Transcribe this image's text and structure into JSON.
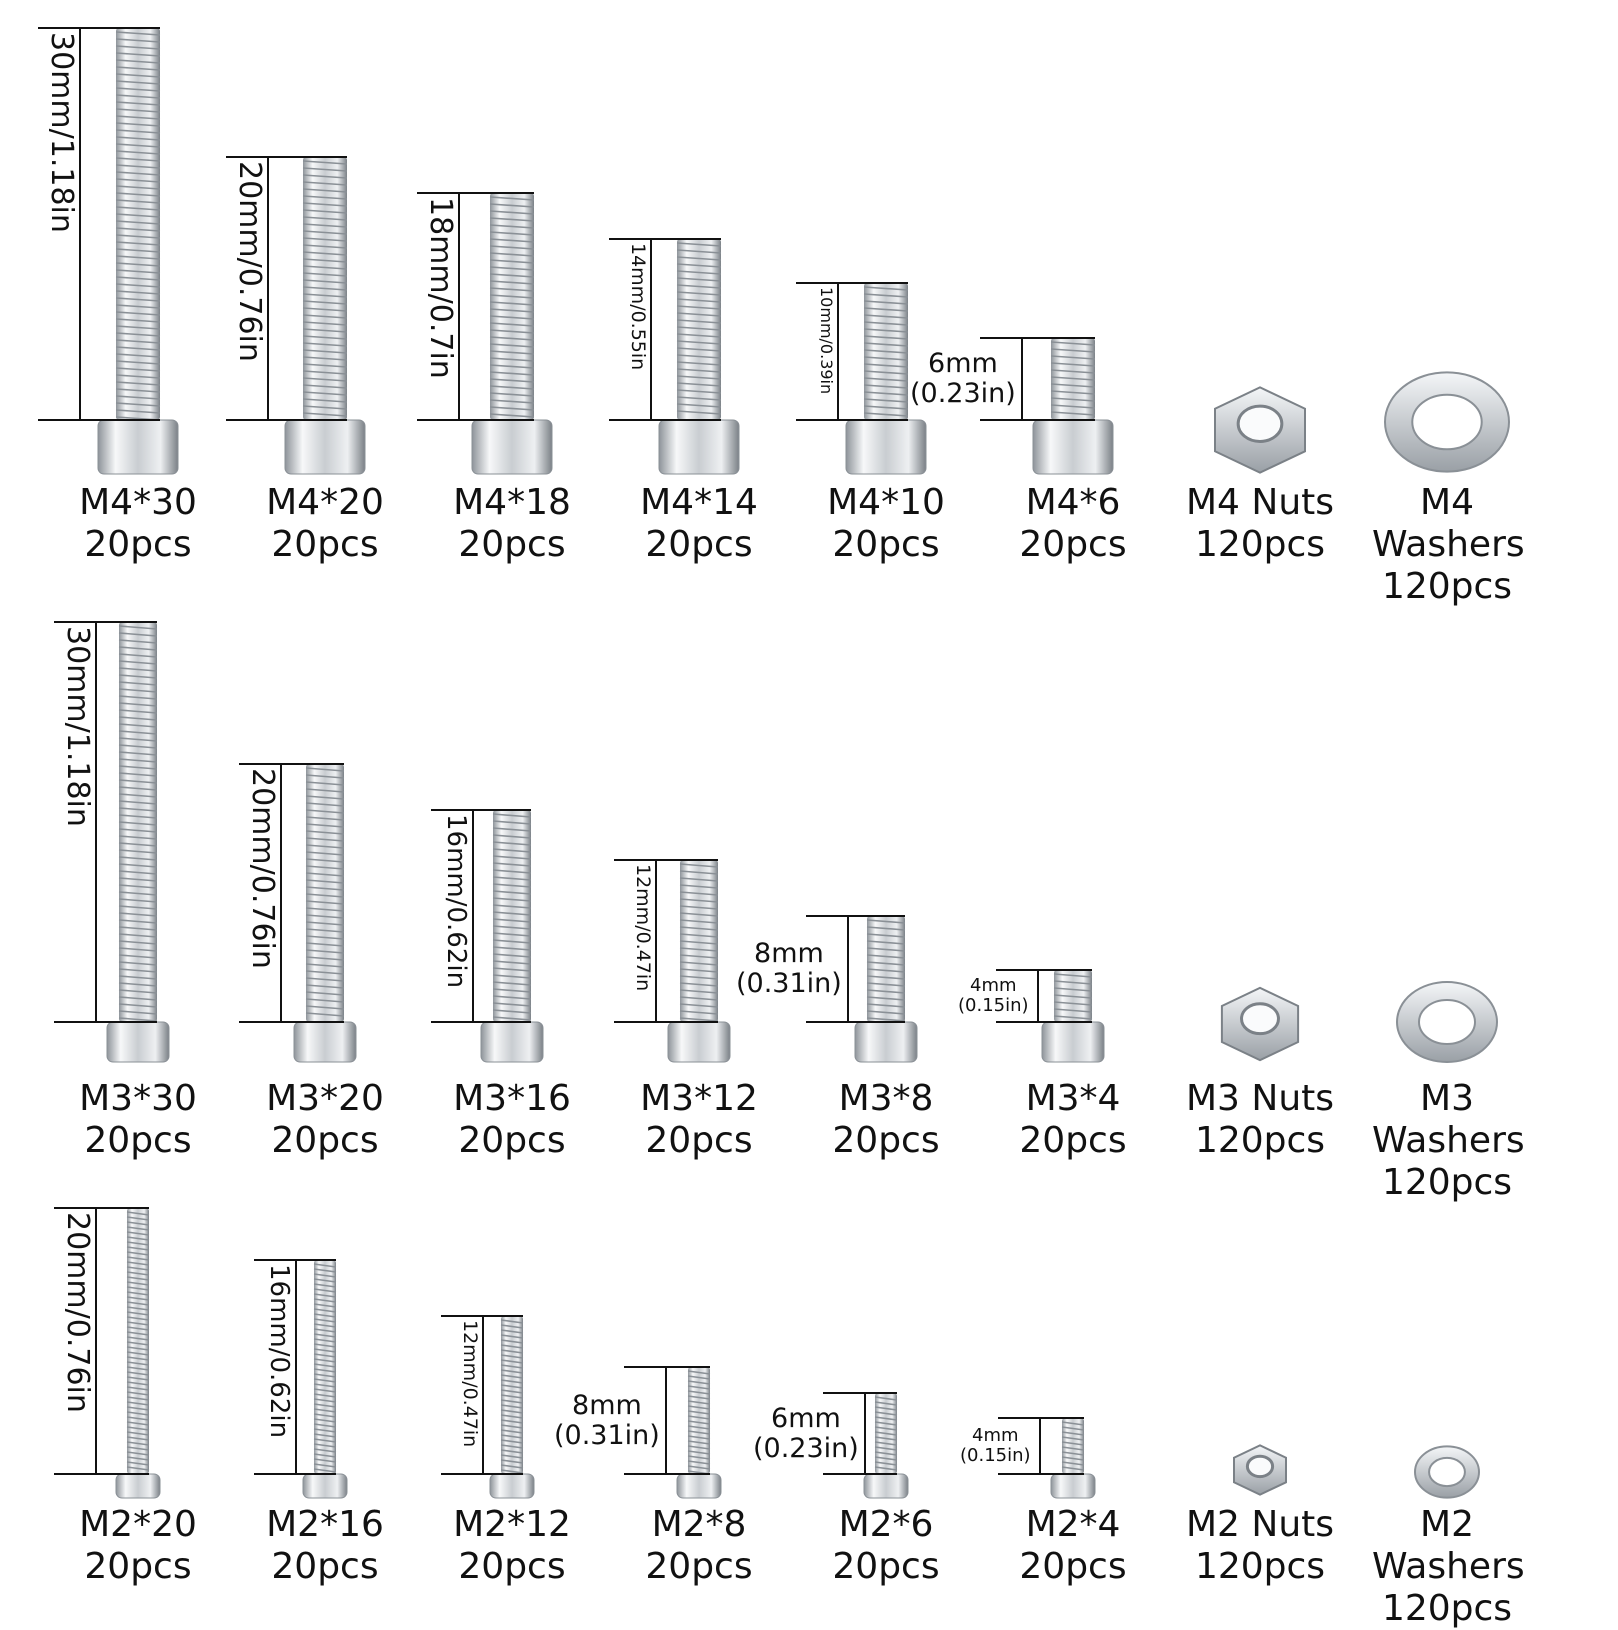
{
  "rows": [
    {
      "items": [
        {
          "name": "M4*30",
          "count": "20pcs",
          "measure": "30mm/1.18in",
          "kind": "screw"
        },
        {
          "name": "M4*20",
          "count": "20pcs",
          "measure": "20mm/0.76in",
          "kind": "screw"
        },
        {
          "name": "M4*18",
          "count": "20pcs",
          "measure": "18mm/0.7in",
          "kind": "screw"
        },
        {
          "name": "M4*14",
          "count": "20pcs",
          "measure": "14mm/0.55in",
          "kind": "screw"
        },
        {
          "name": "M4*10",
          "count": "20pcs",
          "measure": "10mm/0.39in",
          "kind": "screw"
        },
        {
          "name": "M4*6",
          "count": "20pcs",
          "measure_mm": "6mm",
          "measure_in": "(0.23in)",
          "kind": "screw"
        },
        {
          "name": "M4 Nuts",
          "count": "120pcs",
          "kind": "nut"
        },
        {
          "name": "M4",
          "name2": "Washers",
          "count": "120pcs",
          "kind": "washer"
        }
      ]
    },
    {
      "items": [
        {
          "name": "M3*30",
          "count": "20pcs",
          "measure": "30mm/1.18in",
          "kind": "screw"
        },
        {
          "name": "M3*20",
          "count": "20pcs",
          "measure": "20mm/0.76in",
          "kind": "screw"
        },
        {
          "name": "M3*16",
          "count": "20pcs",
          "measure": "16mm/0.62in",
          "kind": "screw"
        },
        {
          "name": "M3*12",
          "count": "20pcs",
          "measure": "12mm/0.47in",
          "kind": "screw"
        },
        {
          "name": "M3*8",
          "count": "20pcs",
          "measure_mm": "8mm",
          "measure_in": "(0.31in)",
          "kind": "screw"
        },
        {
          "name": "M3*4",
          "count": "20pcs",
          "measure_mm": "4mm",
          "measure_in": "(0.15in)",
          "kind": "screw"
        },
        {
          "name": "M3 Nuts",
          "count": "120pcs",
          "kind": "nut"
        },
        {
          "name": "M3",
          "name2": "Washers",
          "count": "120pcs",
          "kind": "washer"
        }
      ]
    },
    {
      "items": [
        {
          "name": "M2*20",
          "count": "20pcs",
          "measure": "20mm/0.76in",
          "kind": "screw"
        },
        {
          "name": "M2*16",
          "count": "20pcs",
          "measure": "16mm/0.62in",
          "kind": "screw"
        },
        {
          "name": "M2*12",
          "count": "20pcs",
          "measure": "12mm/0.47in",
          "kind": "screw"
        },
        {
          "name": "M2*8",
          "count": "20pcs",
          "measure_mm": "8mm",
          "measure_in": "(0.31in)",
          "kind": "screw"
        },
        {
          "name": "M2*6",
          "count": "20pcs",
          "measure_mm": "6mm",
          "measure_in": "(0.23in)",
          "kind": "screw"
        },
        {
          "name": "M2*4",
          "count": "20pcs",
          "measure_mm": "4mm",
          "measure_in": "(0.15in)",
          "kind": "screw"
        },
        {
          "name": "M2 Nuts",
          "count": "120pcs",
          "kind": "nut"
        },
        {
          "name": "M2",
          "name2": "Washers",
          "count": "120pcs",
          "kind": "washer"
        }
      ]
    }
  ],
  "colors": {
    "metal_light": "#f4f6f8",
    "metal_mid": "#c3c8cd",
    "metal_dark": "#7b8187",
    "line": "#111111"
  }
}
